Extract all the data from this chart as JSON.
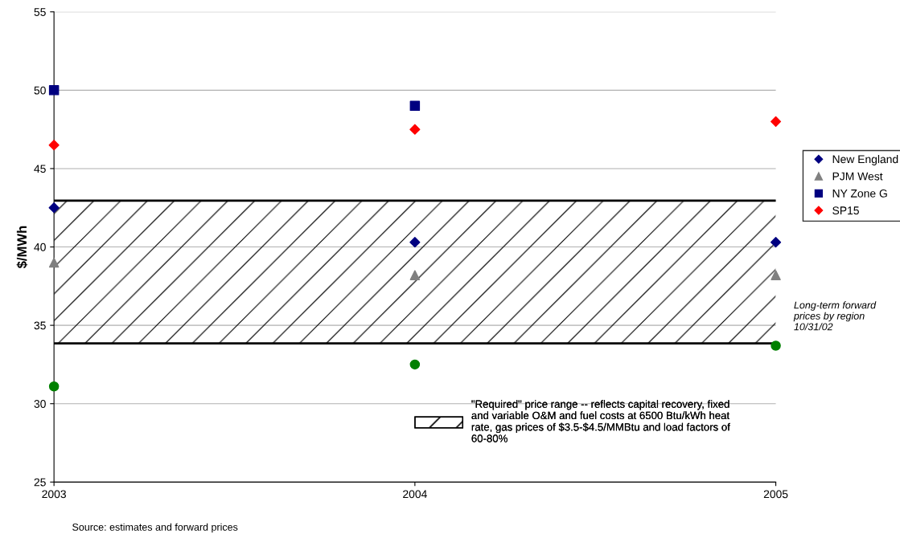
{
  "chart_data": {
    "type": "scatter",
    "ylabel": "$/MWh",
    "x": [
      2003,
      2004,
      2005
    ],
    "xlim": [
      2003,
      2005
    ],
    "xticks": [
      2003,
      2004,
      2005
    ],
    "ylim": [
      25,
      55
    ],
    "yticks": [
      25,
      30,
      35,
      40,
      45,
      50,
      55
    ],
    "grid": "y",
    "legend": "right",
    "series": [
      {
        "name": "New England",
        "color": "#000080",
        "marker": "diamond",
        "values": [
          42.5,
          40.3,
          40.3
        ]
      },
      {
        "name": "PJM West",
        "color": "#808080",
        "marker": "triangle",
        "values": [
          39,
          38.2,
          38.2
        ]
      },
      {
        "name": "NY Zone G",
        "color": "#000080",
        "marker": "square",
        "values": [
          50,
          49,
          null
        ]
      },
      {
        "color": "#008000",
        "marker": "circle",
        "values": [
          31.1,
          32.5,
          33.7
        ]
      },
      {
        "name": "SP15",
        "color": "#ff0000",
        "marker": "diamond",
        "values": [
          46.5,
          47.5,
          48
        ]
      }
    ],
    "ref_lines": [
      {
        "axis": "y",
        "value": 33.85,
        "color": "#000000"
      },
      {
        "axis": "y",
        "value": 42.95,
        "color": "#000000"
      }
    ],
    "bands": [
      {
        "axis": "y",
        "from": 33.85,
        "to": 42.95,
        "color": "#000000",
        "label": "\"Required\" price range -- reflects capital recovery, fixed and variable O&M and fuel costs at 6500 Btu/kWh heat rate, gas prices of $3.5-$4.5/MMBtu and load factors of 60-80%"
      }
    ],
    "annotations": [
      "Long-term forward prices by region 10/31/02",
      "Source: estimates and forward prices"
    ]
  }
}
